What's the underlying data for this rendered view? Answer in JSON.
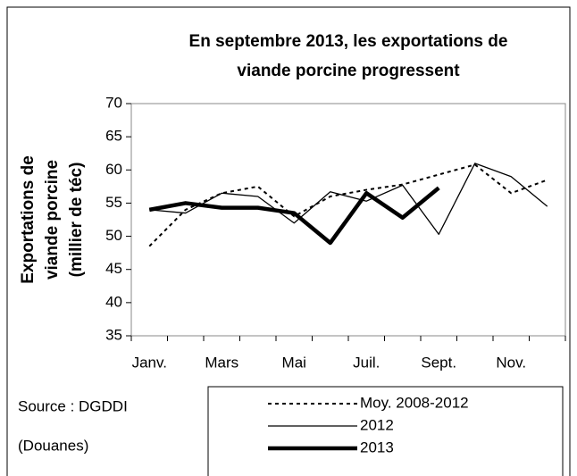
{
  "chart_data": {
    "type": "line",
    "title": [
      "En septembre 2013,  les exportations de",
      "viande porcine progressent"
    ],
    "y_label": [
      "Exportations de",
      "viande porcine",
      "(millier de téc)"
    ],
    "source": [
      "Source : DGDDI",
      "(Douanes)"
    ],
    "categories": [
      "Janv.",
      null,
      "Mars",
      null,
      "Mai",
      null,
      "Juil.",
      null,
      "Sept.",
      null,
      "Nov.",
      null
    ],
    "ylim": [
      35,
      70
    ],
    "yticks": [
      35,
      40,
      45,
      50,
      55,
      60,
      65,
      70
    ],
    "series": [
      {
        "name": "Moy. 2008-2012",
        "color": "#000000",
        "style": "dotted",
        "width": 2,
        "values": [
          48.5,
          54,
          56.5,
          57.5,
          53,
          56,
          57,
          57.8,
          59.3,
          60.8,
          56.5,
          58.5
        ]
      },
      {
        "name": "2012",
        "color": "#000000",
        "style": "solid",
        "width": 1.3,
        "values": [
          54,
          53.5,
          56.5,
          56,
          52,
          56.7,
          55.3,
          57.7,
          50.3,
          61,
          59,
          54.5
        ]
      },
      {
        "name": "2013",
        "color": "#000000",
        "style": "solid",
        "width": 4.5,
        "values": [
          54,
          55,
          54.3,
          54.3,
          53.5,
          49,
          56.5,
          52.8,
          57.3,
          null,
          null,
          null
        ]
      }
    ]
  }
}
